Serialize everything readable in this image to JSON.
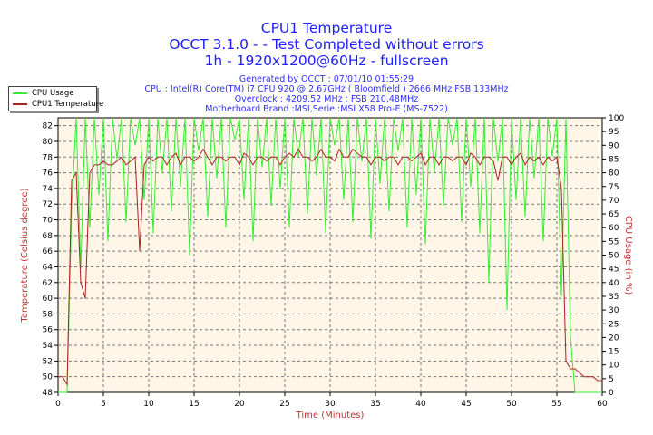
{
  "title_lines": [
    "CPU1 Temperature",
    "OCCT 3.1.0 -  - Test Completed without errors",
    "1h - 1920x1200@60Hz - fullscreen"
  ],
  "info_lines": [
    "Generated by OCCT : 07/01/10 01:55:29",
    "CPU : Intel(R) Core(TM) i7 CPU 920 @ 2.67GHz ( Bloomfield ) 2666 MHz FSB 133MHz",
    "Overclock : 4209.52 MHz ; FSB 210.48MHz",
    "Motherboard Brand :MSI,Serie :MSI X58 Pro-E (MS-7522)"
  ],
  "legend": [
    {
      "label": "CPU Usage",
      "color": "#33ee33"
    },
    {
      "label": "CPU1 Temperature",
      "color": "#aa2222"
    }
  ],
  "chart_data": {
    "type": "line",
    "title": "CPU1 Temperature",
    "xlabel": "Time (Minutes)",
    "ylabel": "Temperature (Celsius degree)",
    "y2label": "CPU Usage (in %)",
    "xlim": [
      0,
      60
    ],
    "ylim": [
      48,
      83
    ],
    "y2lim": [
      0,
      100
    ],
    "xticks": [
      0,
      5,
      10,
      15,
      20,
      25,
      30,
      35,
      40,
      45,
      50,
      55,
      60
    ],
    "yticks": [
      48,
      50,
      52,
      54,
      56,
      58,
      60,
      62,
      64,
      66,
      68,
      70,
      72,
      74,
      76,
      78,
      80,
      82
    ],
    "y2ticks": [
      0,
      5,
      10,
      15,
      20,
      25,
      30,
      35,
      40,
      45,
      50,
      55,
      60,
      65,
      70,
      75,
      80,
      85,
      90,
      95,
      100
    ],
    "grid": true,
    "legend_position": "top-left",
    "x_step": 0.5,
    "series": [
      {
        "name": "CPU Usage",
        "axis": "right",
        "color": "#33ee33",
        "values": [
          0,
          0,
          0,
          68,
          100,
          45,
          100,
          60,
          100,
          72,
          100,
          55,
          100,
          85,
          100,
          62,
          100,
          90,
          100,
          70,
          100,
          58,
          100,
          80,
          100,
          66,
          100,
          75,
          100,
          50,
          100,
          88,
          100,
          64,
          100,
          78,
          100,
          60,
          100,
          92,
          100,
          70,
          100,
          55,
          100,
          82,
          100,
          68,
          100,
          74,
          100,
          60,
          100,
          86,
          100,
          65,
          100,
          79,
          100,
          58,
          100,
          90,
          100,
          70,
          100,
          62,
          100,
          84,
          100,
          56,
          100,
          76,
          100,
          66,
          100,
          88,
          100,
          60,
          100,
          72,
          100,
          54,
          100,
          80,
          100,
          68,
          100,
          90,
          100,
          62,
          100,
          75,
          100,
          58,
          100,
          40,
          100,
          84,
          100,
          30,
          100,
          70,
          100,
          64,
          100,
          78,
          100,
          55,
          100,
          86,
          100,
          35,
          100,
          20,
          0,
          0,
          0,
          0,
          0,
          0,
          0
        ]
      },
      {
        "name": "CPU1 Temperature",
        "axis": "left",
        "color": "#aa2222",
        "values": [
          50,
          50,
          49,
          75,
          76,
          62,
          60,
          76,
          77,
          77,
          77.5,
          77,
          77,
          77.5,
          78,
          77,
          77.5,
          78,
          66,
          77,
          78,
          77.5,
          78,
          78,
          77,
          78,
          78.5,
          77,
          78,
          78,
          77.5,
          78,
          79,
          78,
          77,
          78,
          78,
          77.5,
          78,
          78,
          77,
          78.5,
          78,
          77,
          78,
          78,
          77.5,
          78,
          78,
          77,
          78,
          78.5,
          78,
          79,
          78,
          78,
          77.5,
          78,
          79,
          78,
          78,
          77.5,
          79,
          78,
          78,
          79,
          78.5,
          78,
          78,
          77,
          78,
          78,
          77.5,
          78,
          78,
          77,
          78,
          78,
          77.5,
          78,
          78.5,
          77,
          78,
          78,
          77,
          78,
          78,
          77.5,
          78,
          78,
          77,
          78.5,
          78,
          77,
          78,
          78,
          77.5,
          75,
          78,
          78,
          77,
          78,
          78.5,
          77,
          78,
          77.5,
          78,
          77,
          78,
          77.5,
          78,
          74,
          52,
          51,
          51,
          50.5,
          50,
          50,
          50,
          49.5,
          49.5
        ]
      }
    ]
  }
}
